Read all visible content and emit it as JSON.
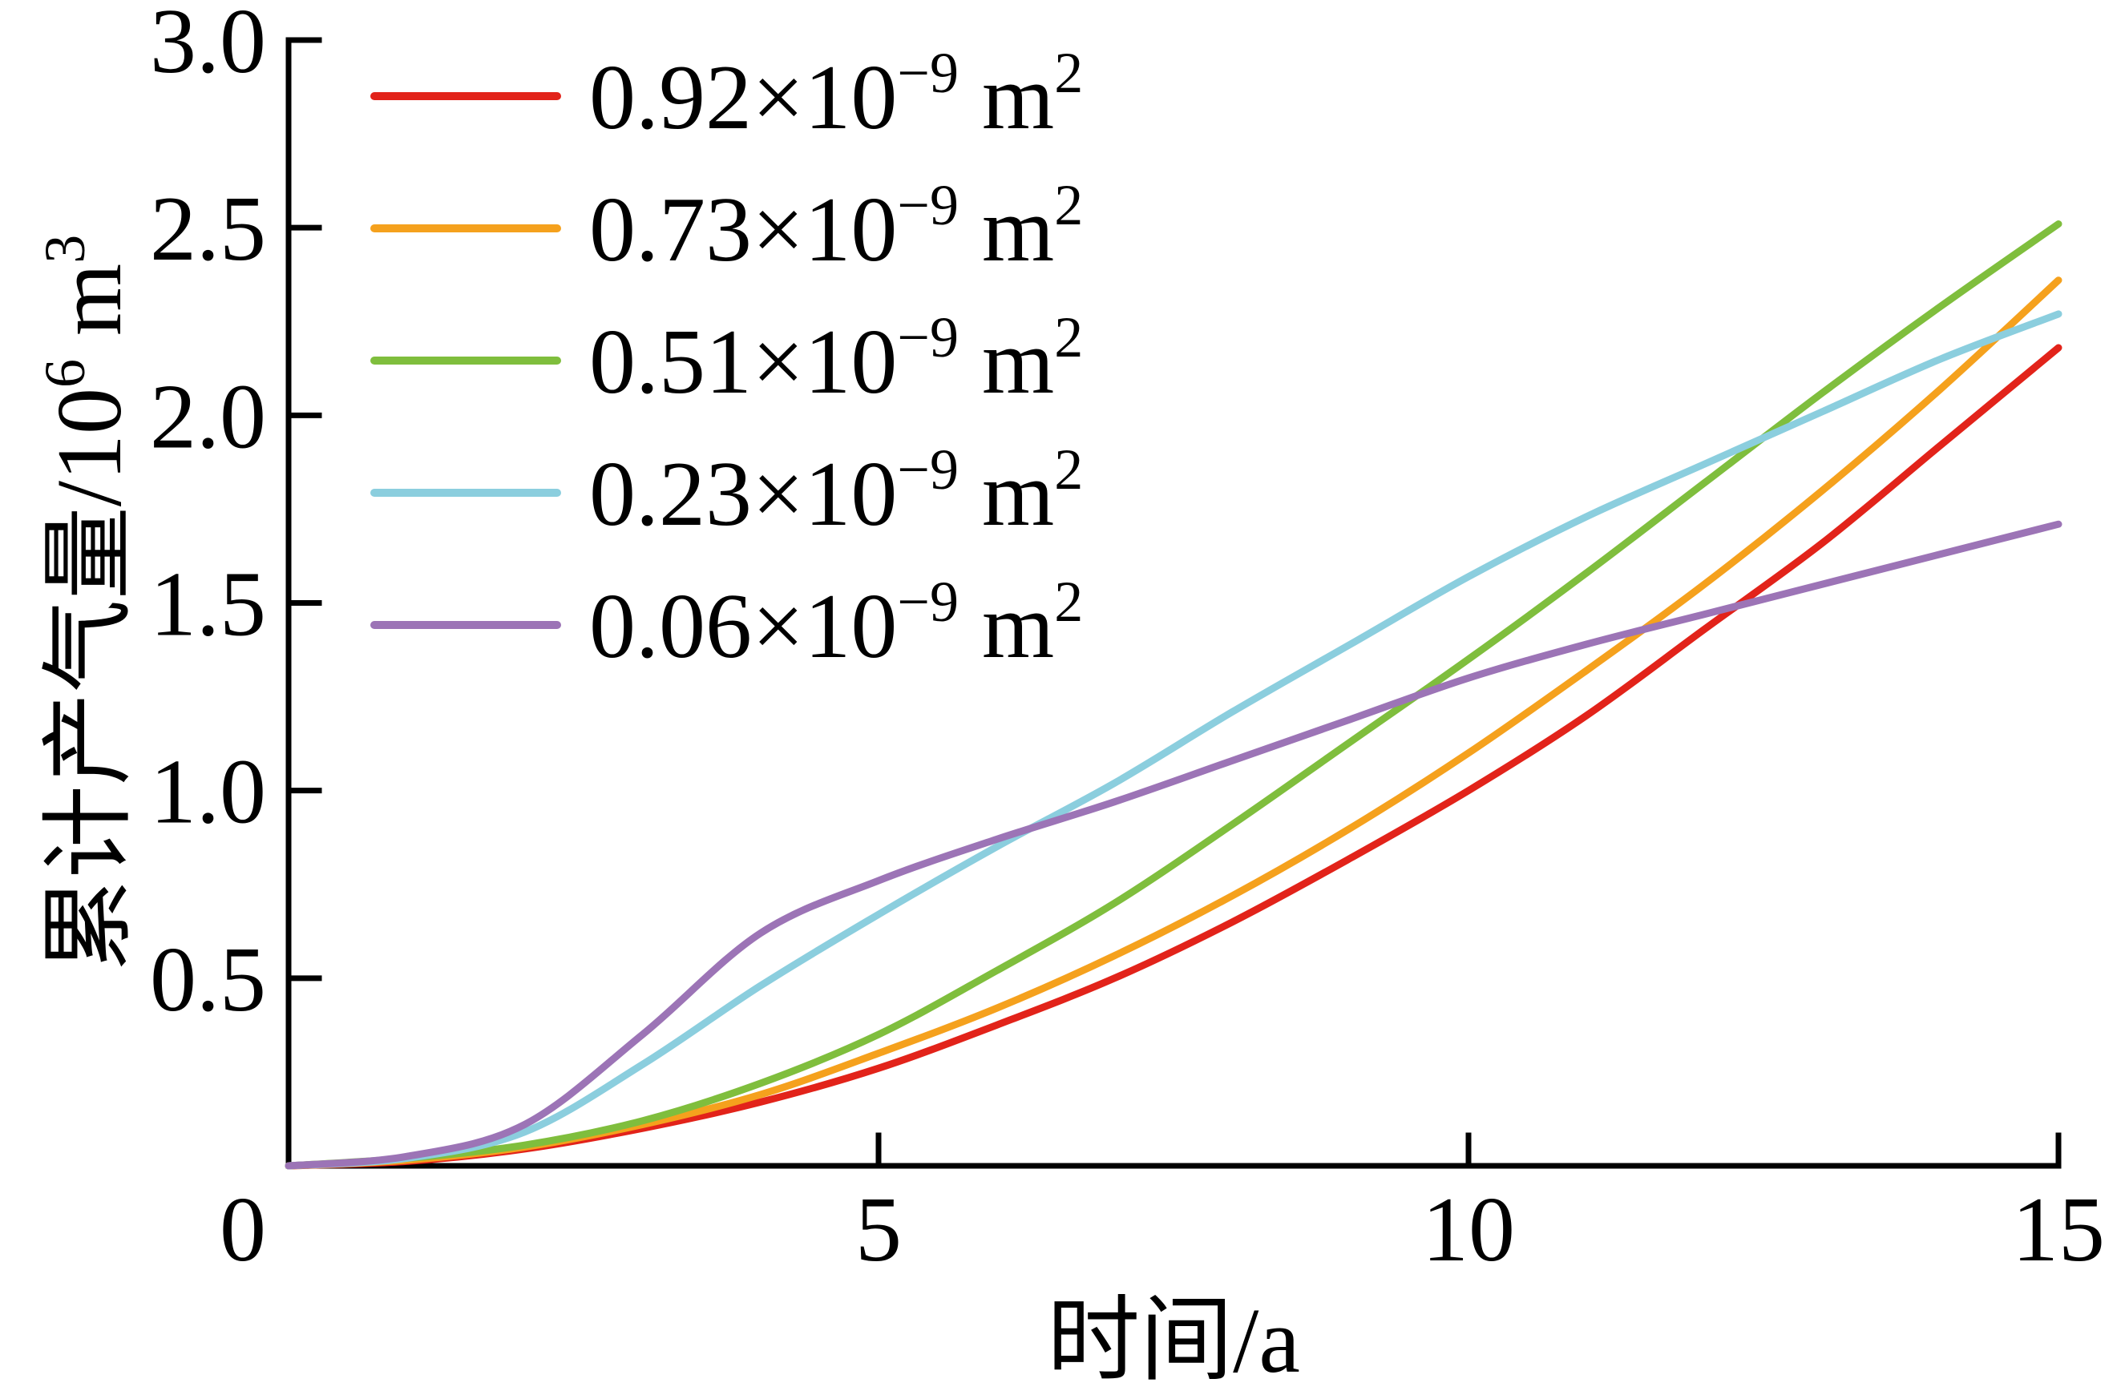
{
  "figure": {
    "background": "#ffffff",
    "axis_color": "#000000",
    "description": "Line chart of cumulative gas production versus time for five permeability values"
  },
  "chart_data": {
    "type": "line",
    "title": "",
    "xlabel": "时间/a",
    "ylabel": "累计产气量/10⁶ m³",
    "ylabel_parts": [
      {
        "t": "累计产气量/10",
        "sup": false
      },
      {
        "t": "6",
        "sup": true
      },
      {
        "t": " m",
        "sup": false
      },
      {
        "t": "3",
        "sup": true
      }
    ],
    "xlim": [
      0,
      15
    ],
    "ylim": [
      0,
      3.0
    ],
    "grid": false,
    "legend_position": "upper-left-inside",
    "origin_label": "0",
    "x_ticks": [
      {
        "v": 5,
        "label": "5"
      },
      {
        "v": 10,
        "label": "10"
      },
      {
        "v": 15,
        "label": "15"
      }
    ],
    "y_ticks": [
      {
        "v": 0.5,
        "label": "0.5"
      },
      {
        "v": 1.0,
        "label": "1.0"
      },
      {
        "v": 1.5,
        "label": "1.5"
      },
      {
        "v": 2.0,
        "label": "2.0"
      },
      {
        "v": 2.5,
        "label": "2.5"
      },
      {
        "v": 3.0,
        "label": "3.0"
      }
    ],
    "x": [
      0,
      1,
      2,
      3,
      4,
      5,
      6,
      7,
      8,
      9,
      10,
      11,
      12,
      13,
      14,
      15
    ],
    "series": [
      {
        "name": "0.92×10⁻⁹ m²",
        "label_parts": [
          {
            "t": "0.92×10",
            "sup": false
          },
          {
            "t": "−9",
            "sup": true
          },
          {
            "t": " m",
            "sup": false
          },
          {
            "t": "2",
            "sup": true
          }
        ],
        "color": "#e2231a",
        "values": [
          0,
          0.012,
          0.045,
          0.1,
          0.17,
          0.26,
          0.375,
          0.5,
          0.65,
          0.82,
          1.0,
          1.2,
          1.43,
          1.66,
          1.92,
          2.18
        ]
      },
      {
        "name": "0.73×10⁻⁹ m²",
        "label_parts": [
          {
            "t": "0.73×10",
            "sup": false
          },
          {
            "t": "−9",
            "sup": true
          },
          {
            "t": " m",
            "sup": false
          },
          {
            "t": "2",
            "sup": true
          }
        ],
        "color": "#f5a11d",
        "values": [
          0,
          0.015,
          0.05,
          0.11,
          0.19,
          0.3,
          0.42,
          0.56,
          0.72,
          0.9,
          1.1,
          1.32,
          1.55,
          1.8,
          2.07,
          2.36
        ]
      },
      {
        "name": "0.51×10⁻⁹ m²",
        "label_parts": [
          {
            "t": "0.51×10",
            "sup": false
          },
          {
            "t": "−9",
            "sup": true
          },
          {
            "t": " m",
            "sup": false
          },
          {
            "t": "2",
            "sup": true
          }
        ],
        "color": "#7fbe3d",
        "values": [
          0,
          0.02,
          0.055,
          0.12,
          0.22,
          0.35,
          0.52,
          0.7,
          0.91,
          1.13,
          1.35,
          1.58,
          1.82,
          2.06,
          2.29,
          2.51
        ]
      },
      {
        "name": "0.23×10⁻⁹ m²",
        "label_parts": [
          {
            "t": "0.23×10",
            "sup": false
          },
          {
            "t": "−9",
            "sup": true
          },
          {
            "t": " m",
            "sup": false
          },
          {
            "t": "2",
            "sup": true
          }
        ],
        "color": "#8bcede",
        "values": [
          0,
          0.02,
          0.09,
          0.27,
          0.48,
          0.67,
          0.85,
          1.02,
          1.21,
          1.39,
          1.57,
          1.73,
          1.87,
          2.01,
          2.15,
          2.27
        ]
      },
      {
        "name": "0.06×10⁻⁹ m²",
        "label_parts": [
          {
            "t": "0.06×10",
            "sup": false
          },
          {
            "t": "−9",
            "sup": true
          },
          {
            "t": " m",
            "sup": false
          },
          {
            "t": "2",
            "sup": true
          }
        ],
        "color": "#9c74b6",
        "values": [
          0,
          0.025,
          0.11,
          0.35,
          0.62,
          0.76,
          0.87,
          0.97,
          1.08,
          1.19,
          1.3,
          1.39,
          1.47,
          1.55,
          1.63,
          1.71
        ]
      }
    ]
  }
}
